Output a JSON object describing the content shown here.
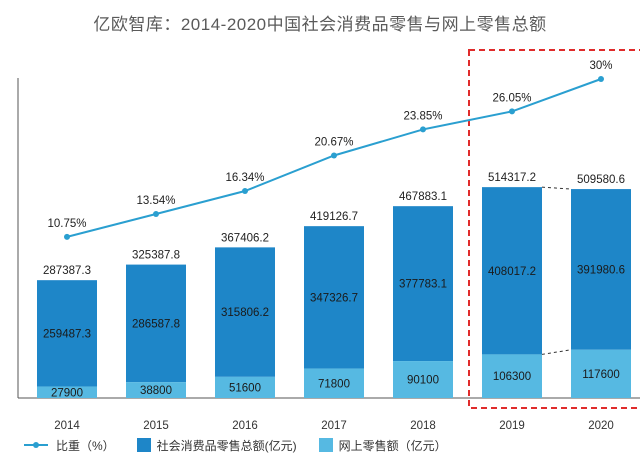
{
  "chart_data": {
    "type": "bar",
    "title": "亿欧智库：2014-2020中国社会消费品零售与网上零售总额",
    "categories": [
      "2014",
      "2015",
      "2016",
      "2017",
      "2018",
      "2019",
      "2020"
    ],
    "series": [
      {
        "name": "网上零售额（亿元）",
        "type": "bar",
        "values": [
          27900,
          38800,
          51600,
          71800,
          90100,
          106300,
          117600
        ],
        "labels": [
          "27900",
          "38800",
          "51600",
          "71800",
          "90100",
          "106300",
          "117600"
        ]
      },
      {
        "name": "社会消费品零售总额(亿元)",
        "type": "bar",
        "values": [
          287387.3,
          325387.8,
          367406.2,
          419126.7,
          467883.1,
          514317.2,
          509580.6
        ],
        "labels": [
          "287387.3",
          "325387.8",
          "367406.2",
          "419126.7",
          "467883.1",
          "514317.2",
          "509580.6"
        ],
        "remainder_labels": [
          "259487.3",
          "286587.8",
          "315806.2",
          "347326.7",
          "377783.1",
          "408017.2",
          "391980.6"
        ]
      },
      {
        "name": "比重（%）",
        "type": "line",
        "values": [
          10.75,
          13.54,
          16.34,
          20.67,
          23.85,
          26.05,
          30
        ],
        "labels": [
          "10.75%",
          "13.54%",
          "16.34%",
          "20.67%",
          "23.85%",
          "26.05%",
          "30%"
        ]
      }
    ],
    "highlight": {
      "categories": [
        "2019",
        "2020"
      ],
      "style": "red dashed box"
    },
    "legend_position": "bottom",
    "grid": false
  },
  "colors": {
    "total_bar": "#1e86c8",
    "online_bar": "#56b9e2",
    "line": "#2a9fd0",
    "highlight": "#e02b2b",
    "axis": "#555555",
    "title": "#5a5a5a"
  }
}
